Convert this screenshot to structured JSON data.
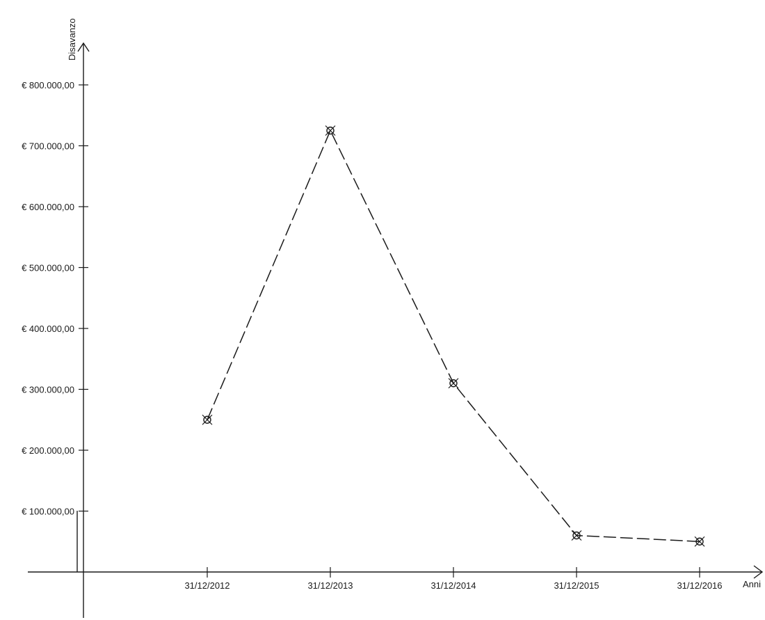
{
  "chart_data": {
    "type": "line",
    "xlabel": "Anni",
    "ylabel": "Disavanzo",
    "categories": [
      "31/12/2012",
      "31/12/2013",
      "31/12/2014",
      "31/12/2015",
      "31/12/2016"
    ],
    "series": [
      {
        "values": [
          250000,
          725000,
          310000,
          60000,
          50000
        ]
      }
    ],
    "ylim": [
      0,
      800000
    ],
    "yticks": [
      100000,
      200000,
      300000,
      400000,
      500000,
      600000,
      700000,
      800000
    ],
    "ytick_labels": [
      "€ 100.000,00",
      "€ 200.000,00",
      "€ 300.000,00",
      "€ 400.000,00",
      "€ 500.000,00",
      "€ 600.000,00",
      "€ 700.000,00",
      "€ 800.000,00"
    ],
    "grid": false,
    "line_style": "dashed",
    "marker": "circle-x"
  }
}
